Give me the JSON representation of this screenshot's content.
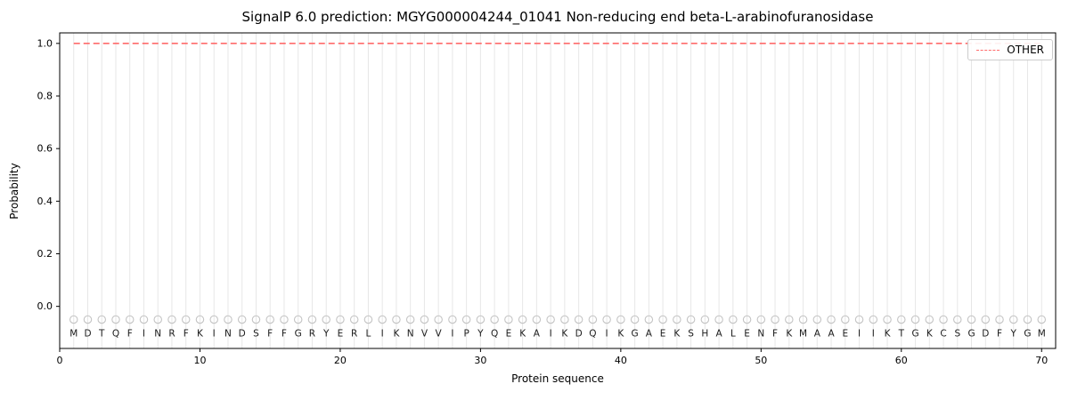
{
  "colors": {
    "other_line": "#ff6b6b",
    "grid": "#e7e7e7",
    "marker": "#c4c4c4",
    "spine": "#000000",
    "text": "#000000",
    "legend_border": "#cccccc"
  },
  "chart_data": {
    "type": "line",
    "title": "SignalP 6.0 prediction: MGYG000004244_01041 Non-reducing end beta-L-arabinofuranosidase",
    "xlabel": "Protein sequence",
    "ylabel": "Probability",
    "xlim": [
      0,
      71
    ],
    "ylim": [
      -0.16,
      1.04
    ],
    "xticks": [
      0,
      10,
      20,
      30,
      40,
      50,
      60,
      70
    ],
    "yticks": [
      0.0,
      0.2,
      0.4,
      0.6,
      0.8,
      1.0
    ],
    "grid": "vertical-line-per-residue",
    "legend_position": "upper right",
    "sequence": "MDTQFINRFKINDSFFGRYERLIKNVVIPYQEKAIKDQIKGAEKSHALENFKMAAEIIKTGKCSGDFYGM",
    "residue_markers": {
      "shape": "circle",
      "y": -0.05,
      "color": "#c4c4c4"
    },
    "series": [
      {
        "name": "OTHER",
        "color": "#ff6b6b",
        "dash": true,
        "x_start": 1,
        "values": [
          1.0,
          1.0,
          1.0,
          1.0,
          1.0,
          1.0,
          1.0,
          1.0,
          1.0,
          1.0,
          1.0,
          1.0,
          1.0,
          1.0,
          1.0,
          1.0,
          1.0,
          1.0,
          1.0,
          1.0,
          1.0,
          1.0,
          1.0,
          1.0,
          1.0,
          1.0,
          1.0,
          1.0,
          1.0,
          1.0,
          1.0,
          1.0,
          1.0,
          1.0,
          1.0,
          1.0,
          1.0,
          1.0,
          1.0,
          1.0,
          1.0,
          1.0,
          1.0,
          1.0,
          1.0,
          1.0,
          1.0,
          1.0,
          1.0,
          1.0,
          1.0,
          1.0,
          1.0,
          1.0,
          1.0,
          1.0,
          1.0,
          1.0,
          1.0,
          1.0,
          1.0,
          1.0,
          1.0,
          1.0,
          1.0,
          1.0,
          1.0,
          1.0,
          1.0,
          1.0
        ]
      }
    ]
  }
}
